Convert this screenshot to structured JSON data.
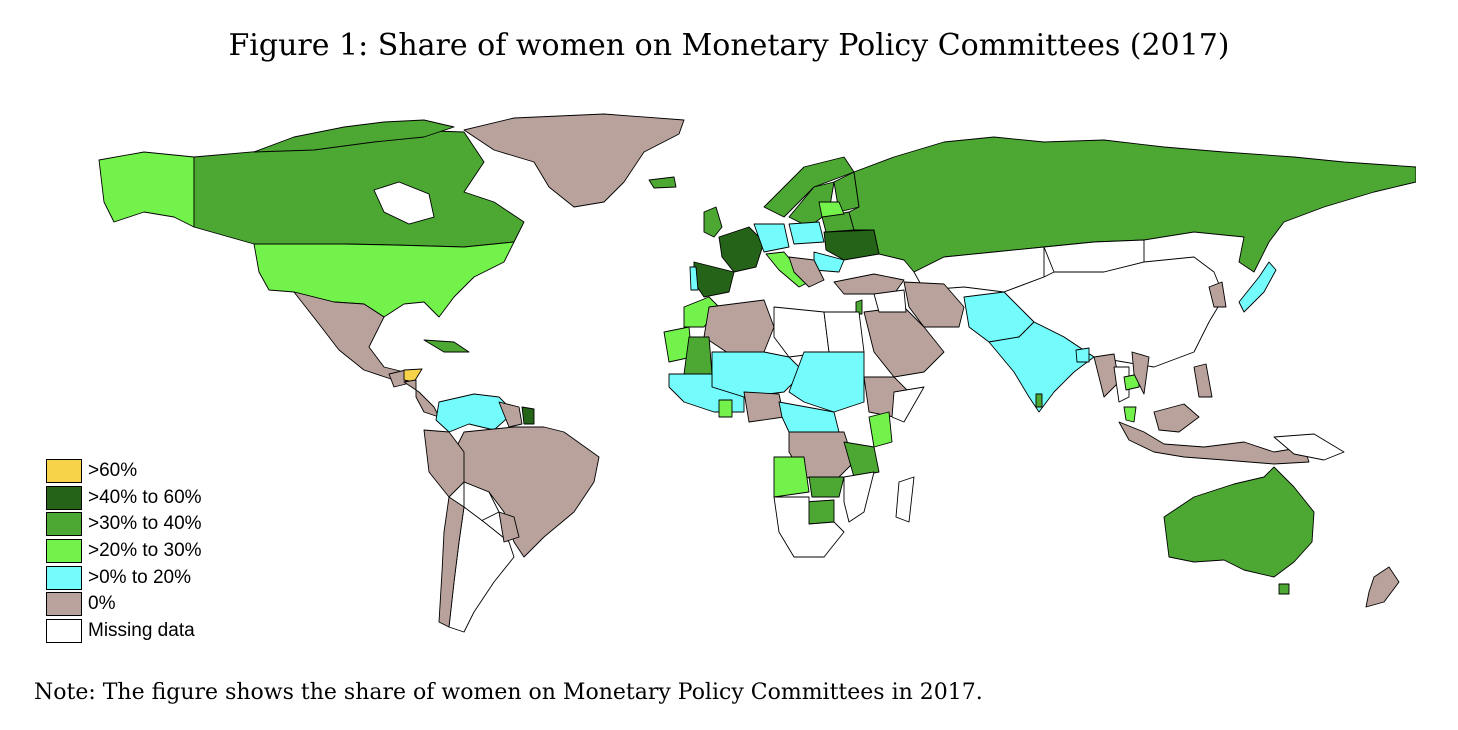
{
  "title": "Figure 1: Share of women on Monetary Policy Committees (2017)",
  "note": "Note: The figure shows the share of women on Monetary Policy Committees in 2017.",
  "colors": {
    "gt60": "#f7d34a",
    "40to60": "#256318",
    "30to40": "#4ca833",
    "20to30": "#73f24c",
    "0to20": "#74fcfc",
    "zero": "#b9a29b",
    "missing": "#ffffff"
  },
  "legend": {
    "items": [
      {
        "label": ">60%",
        "color": "#f7d34a"
      },
      {
        "label": ">40% to 60%",
        "color": "#256318"
      },
      {
        "label": ">30% to 40%",
        "color": "#4ca833"
      },
      {
        "label": ">20% to 30%",
        "color": "#73f24c"
      },
      {
        "label": ">0% to 20%",
        "color": "#74fcfc"
      },
      {
        "label": "0%",
        "color": "#b9a29b"
      },
      {
        "label": "Missing data",
        "color": "#ffffff"
      }
    ]
  }
}
